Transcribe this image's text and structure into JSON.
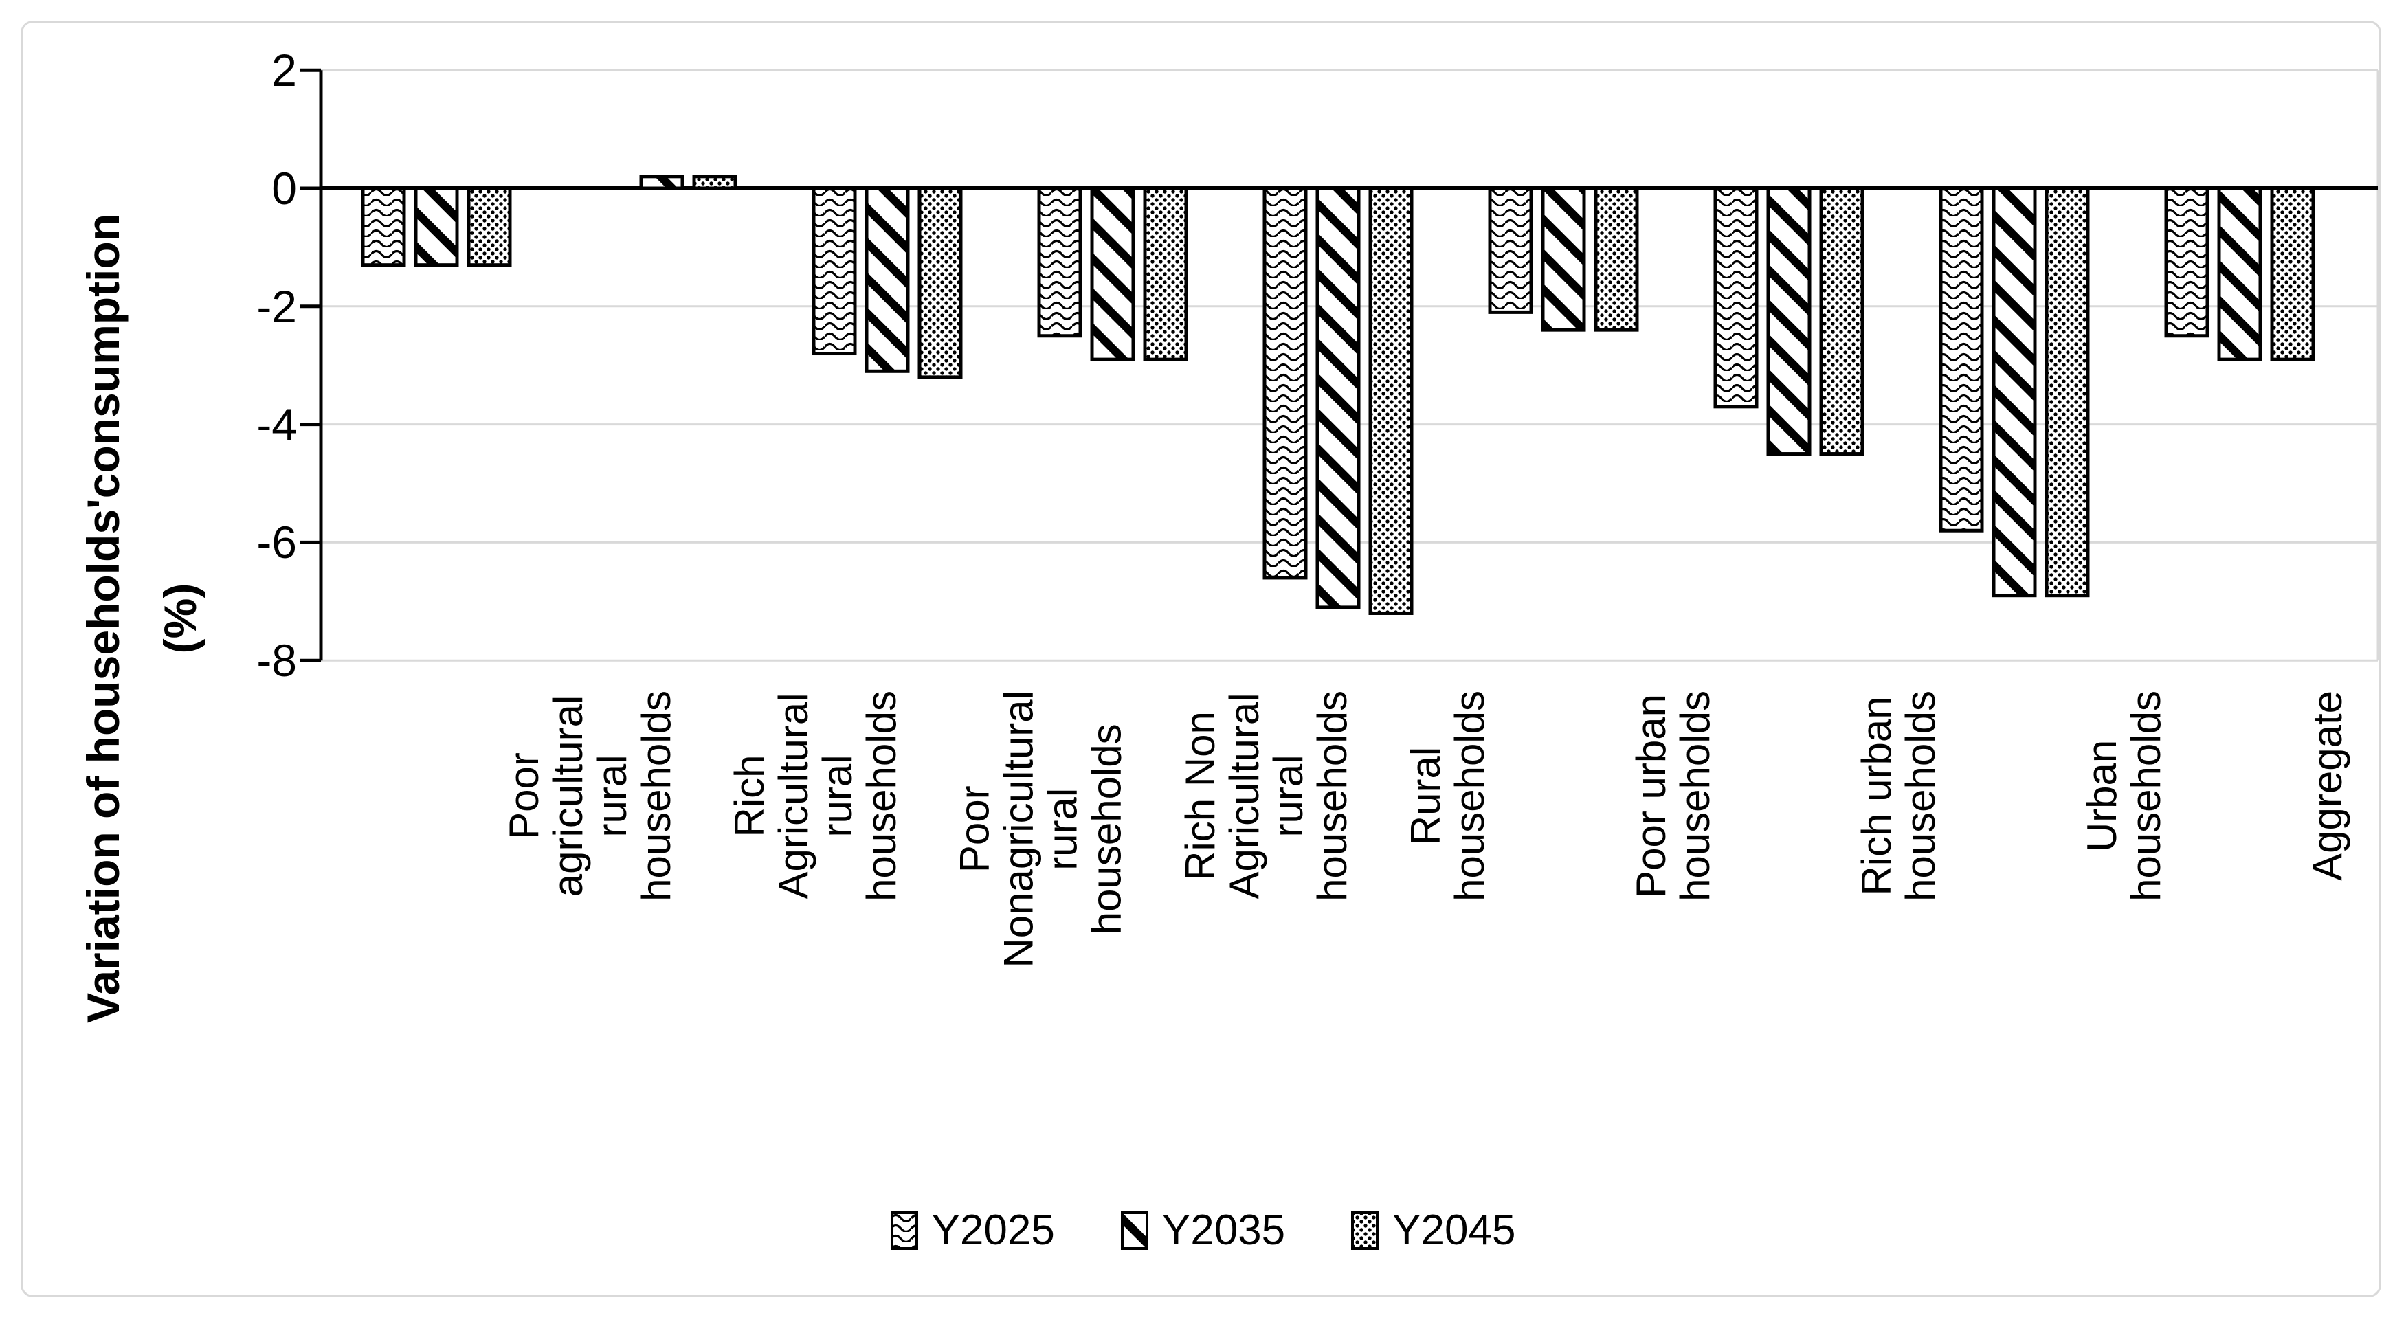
{
  "chart_data": {
    "type": "bar",
    "title": "",
    "ylabel": "Variation of households'consumption (%)",
    "ylabel_lines": "Variation of households'consumption\n(%)",
    "xlabel": "",
    "ylim": [
      -8,
      2
    ],
    "y_ticks": [
      2,
      0,
      -2,
      -4,
      -6,
      -8
    ],
    "grid": true,
    "legend_position": "bottom-center",
    "categories": [
      "Poor agricultural rural households",
      "Rich Agricultural rural households",
      "Poor Nonagricultural rural households",
      "Rich Non Agricultural rural households",
      "Rural households",
      "Poor urban households",
      "Rich urban households",
      "Urban households",
      "Aggregate"
    ],
    "category_label_lines": [
      "Poor agricultural\nrural households",
      "Rich Agricultural\nrural households",
      "Poor\nNonagricultural\nrural households",
      "Rich Non\nAgricultural rural\nhouseholds",
      "Rural households",
      "Poor urban\nhouseholds",
      "Rich urban\nhouseholds",
      "Urban households",
      "Aggregate"
    ],
    "series": [
      {
        "name": "Y2025",
        "pattern": "wave",
        "values": [
          -1.3,
          0.0,
          -2.8,
          -2.5,
          -6.6,
          -2.1,
          -3.7,
          -5.8,
          -2.5
        ]
      },
      {
        "name": "Y2035",
        "pattern": "diagonal",
        "values": [
          -1.3,
          0.2,
          -3.1,
          -2.9,
          -7.1,
          -2.4,
          -4.5,
          -6.9,
          -2.9
        ]
      },
      {
        "name": "Y2045",
        "pattern": "dots",
        "values": [
          -1.3,
          0.2,
          -3.2,
          -2.9,
          -7.2,
          -2.4,
          -4.5,
          -6.9,
          -2.9
        ]
      }
    ],
    "colors": {
      "bar_fill_base": "#ffffff",
      "bar_stroke": "#000000",
      "gridline": "#d9d9d9",
      "axis": "#000000",
      "figure_border": "#d9d9d9",
      "text": "#000000"
    }
  }
}
